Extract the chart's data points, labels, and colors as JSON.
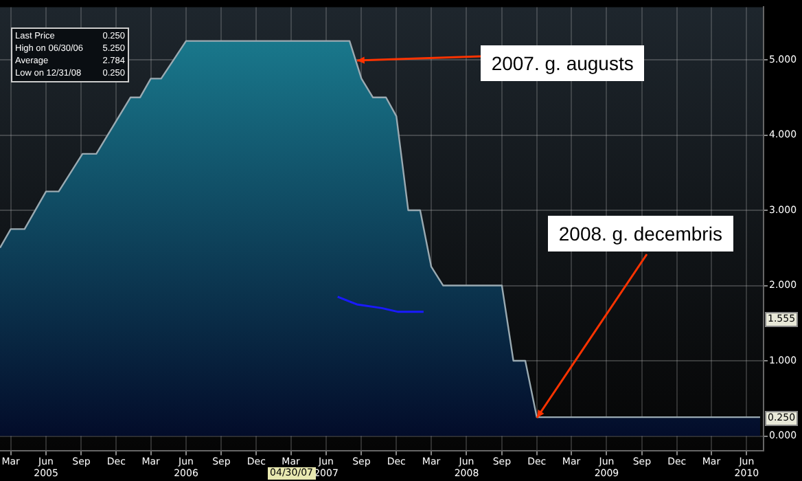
{
  "chart_data": {
    "type": "area",
    "series": [
      {
        "color": "#1b8194",
        "x": [
          "2005-02-01",
          "2005-03-01",
          "2005-04-06",
          "2005-06-01",
          "2005-07-04",
          "2005-09-04",
          "2005-10-10",
          "2006-01-07",
          "2006-02-01",
          "2006-03-01",
          "2006-03-28",
          "2006-06-01",
          "2007-08-01",
          "2007-09-01",
          "2007-10-01",
          "2007-11-04",
          "2007-12-01",
          "2008-01-01",
          "2008-02-01",
          "2008-03-01",
          "2008-04-01",
          "2008-09-01",
          "2008-10-01",
          "2008-11-01",
          "2008-12-01",
          "2010-07-06"
        ],
        "values": [
          2.5,
          2.75,
          2.75,
          3.25,
          3.25,
          3.75,
          3.75,
          4.5,
          4.5,
          4.75,
          4.75,
          5.25,
          5.25,
          4.75,
          4.5,
          4.5,
          4.25,
          3.0,
          3.0,
          2.25,
          2.0,
          2.0,
          1.0,
          1.0,
          0.25,
          0.25
        ]
      },
      {
        "type": "line",
        "color": "#1a1aff",
        "x": [
          "2007-07-01",
          "2007-08-20",
          "2007-10-24",
          "2007-12-06",
          "2008-02-10"
        ],
        "values": [
          1.85,
          1.75,
          1.7,
          1.65,
          1.65
        ]
      }
    ],
    "xlim": [
      "2005-02-01",
      "2010-07-15"
    ],
    "xticks": [
      {
        "value": "2005-03-01",
        "label": "Mar"
      },
      {
        "value": "2005-06-01",
        "label": "Jun 2005"
      },
      {
        "value": "2005-09-01",
        "label": "Sep"
      },
      {
        "value": "2005-12-01",
        "label": "Dec"
      },
      {
        "value": "2006-03-01",
        "label": "Mar"
      },
      {
        "value": "2006-06-01",
        "label": "Jun 2006"
      },
      {
        "value": "2006-09-01",
        "label": "Sep"
      },
      {
        "value": "2006-12-01",
        "label": "Dec"
      },
      {
        "value": "2007-03-01",
        "label": "Mar"
      },
      {
        "value": "2007-06-01",
        "label": "Jun 2007"
      },
      {
        "value": "2007-09-01",
        "label": "Sep"
      },
      {
        "value": "2007-12-01",
        "label": "Dec"
      },
      {
        "value": "2008-03-01",
        "label": "Mar"
      },
      {
        "value": "2008-06-01",
        "label": "Jun 2008"
      },
      {
        "value": "2008-09-01",
        "label": "Sep"
      },
      {
        "value": "2008-12-01",
        "label": "Dec"
      },
      {
        "value": "2009-03-01",
        "label": "Mar"
      },
      {
        "value": "2009-06-01",
        "label": "Jun 2009"
      },
      {
        "value": "2009-09-01",
        "label": "Sep"
      },
      {
        "value": "2009-12-01",
        "label": "Dec"
      },
      {
        "value": "2010-03-01",
        "label": "Mar"
      },
      {
        "value": "2010-06-01",
        "label": "Jun 2010"
      }
    ],
    "ylim": [
      -0.2,
      5.7
    ],
    "yticks": [
      {
        "value": 0,
        "label": "0.000"
      },
      {
        "value": 1,
        "label": "1.000"
      },
      {
        "value": 2,
        "label": "2.000"
      },
      {
        "value": 3,
        "label": "3.000"
      },
      {
        "value": 4,
        "label": "4.000"
      },
      {
        "value": 5,
        "label": "5.000"
      }
    ],
    "grid": true,
    "marker": "none",
    "line_style": "solid",
    "annotations": [
      "Last Price 0.250",
      "High on 06/30/06 5.250",
      "Average 2.784",
      "Low on 12/31/08 0.250",
      {
        "text": "2007. g. augusts",
        "x": "2007-08-20",
        "y": 5.0
      },
      {
        "text": "2008. g. decembris",
        "x": "2008-12-01",
        "y": 0.25
      },
      {
        "text": "0.250",
        "y": 0.25
      },
      {
        "text": "1.555",
        "y": 1.555
      },
      "04/30/07"
    ]
  }
}
